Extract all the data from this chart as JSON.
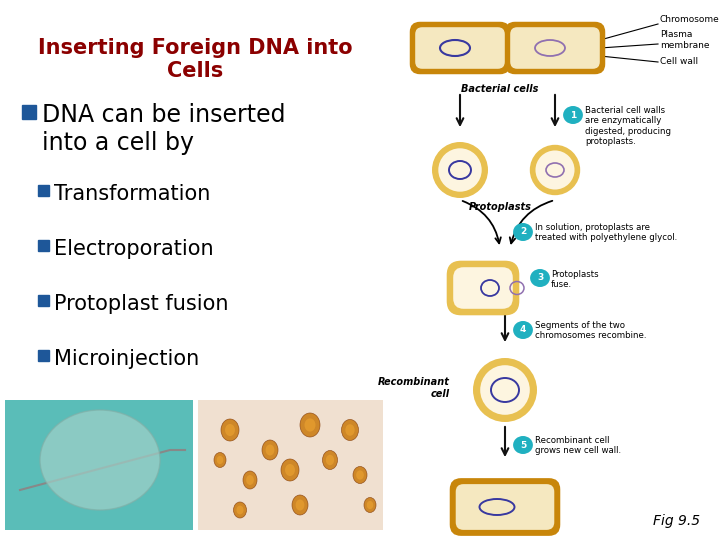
{
  "title": "Inserting Foreign DNA into\nCells",
  "title_color": "#8B0000",
  "title_fontsize": 15,
  "bg_color": "#FFFFFF",
  "bullet_color": "#1E5799",
  "bullet1_text": "DNA can be inserted\ninto a cell by",
  "bullet1_fontsize": 17,
  "sub_bullets": [
    "Transformation",
    "Electroporation",
    "Protoplast fusion",
    "Microinjection"
  ],
  "sub_bullet_fontsize": 15,
  "fig_label": "Fig 9.5",
  "cell_wall_color": "#C8860A",
  "cell_inner_color": "#F5E8C0",
  "protoplast_outer": "#E8C050",
  "protoplast_inner": "#FDF5E0",
  "chrom_color1": "#3838A0",
  "chrom_color2": "#9070B0",
  "teal_color": "#20B0C0",
  "arrow_color": "#111111"
}
